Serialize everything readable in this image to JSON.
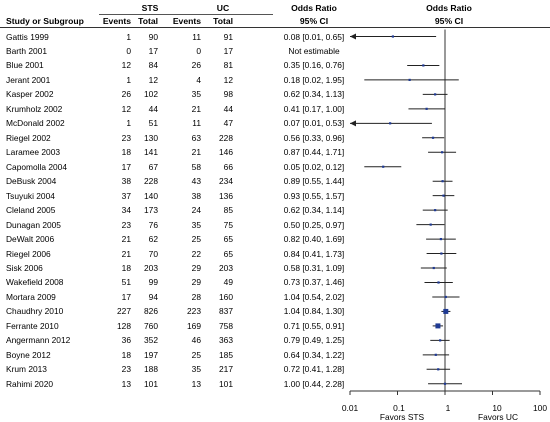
{
  "header": {
    "study_col": "Study or Subgroup",
    "group1": "STS",
    "group2": "UC",
    "events": "Events",
    "total": "Total",
    "or_title_left": "Odds Ratio",
    "or_sub_left": "95% CI",
    "or_title_right": "Odds Ratio",
    "or_sub_right": "95% CI"
  },
  "axis": {
    "ticks": [
      "0.01",
      "0.1",
      "1",
      "10",
      "100"
    ],
    "favors_left": "Favors  STS",
    "favors_right": "Favors  UC"
  },
  "studies": [
    {
      "name": "Gattis 1999",
      "e1": "1",
      "t1": "90",
      "e2": "11",
      "t2": "91",
      "ci_text": "0.08 [0.01, 0.65]"
    },
    {
      "name": "Barth 2001",
      "e1": "0",
      "t1": "17",
      "e2": "0",
      "t2": "17",
      "ci_text": "Not estimable"
    },
    {
      "name": "Blue 2001",
      "e1": "12",
      "t1": "84",
      "e2": "26",
      "t2": "81",
      "ci_text": "0.35 [0.16, 0.76]"
    },
    {
      "name": "Jerant 2001",
      "e1": "1",
      "t1": "12",
      "e2": "4",
      "t2": "12",
      "ci_text": "0.18 [0.02, 1.95]"
    },
    {
      "name": "Kasper 2002",
      "e1": "26",
      "t1": "102",
      "e2": "35",
      "t2": "98",
      "ci_text": "0.62 [0.34, 1.13]"
    },
    {
      "name": "Krumholz 2002",
      "e1": "12",
      "t1": "44",
      "e2": "21",
      "t2": "44",
      "ci_text": "0.41 [0.17, 1.00]"
    },
    {
      "name": "McDonald 2002",
      "e1": "1",
      "t1": "51",
      "e2": "11",
      "t2": "47",
      "ci_text": "0.07 [0.01, 0.53]"
    },
    {
      "name": "Riegel 2002",
      "e1": "23",
      "t1": "130",
      "e2": "63",
      "t2": "228",
      "ci_text": "0.56 [0.33, 0.96]"
    },
    {
      "name": "Laramee 2003",
      "e1": "18",
      "t1": "141",
      "e2": "21",
      "t2": "146",
      "ci_text": "0.87 [0.44, 1.71]"
    },
    {
      "name": "Capomolla 2004",
      "e1": "17",
      "t1": "67",
      "e2": "58",
      "t2": "66",
      "ci_text": "0.05 [0.02, 0.12]"
    },
    {
      "name": "DeBusk 2004",
      "e1": "38",
      "t1": "228",
      "e2": "43",
      "t2": "234",
      "ci_text": "0.89 [0.55, 1.44]"
    },
    {
      "name": "Tsuyuki 2004",
      "e1": "37",
      "t1": "140",
      "e2": "38",
      "t2": "136",
      "ci_text": "0.93 [0.55, 1.57]"
    },
    {
      "name": "Cleland 2005",
      "e1": "34",
      "t1": "173",
      "e2": "24",
      "t2": "85",
      "ci_text": "0.62 [0.34, 1.14]"
    },
    {
      "name": "Dunagan 2005",
      "e1": "23",
      "t1": "76",
      "e2": "35",
      "t2": "75",
      "ci_text": "0.50 [0.25, 0.97]"
    },
    {
      "name": "DeWalt 2006",
      "e1": "21",
      "t1": "62",
      "e2": "25",
      "t2": "65",
      "ci_text": "0.82 [0.40, 1.69]"
    },
    {
      "name": "Riegel 2006",
      "e1": "21",
      "t1": "70",
      "e2": "22",
      "t2": "65",
      "ci_text": "0.84 [0.41, 1.73]"
    },
    {
      "name": "Sisk 2006",
      "e1": "18",
      "t1": "203",
      "e2": "29",
      "t2": "203",
      "ci_text": "0.58 [0.31, 1.09]"
    },
    {
      "name": "Wakefield 2008",
      "e1": "51",
      "t1": "99",
      "e2": "29",
      "t2": "49",
      "ci_text": "0.73 [0.37, 1.46]"
    },
    {
      "name": "Mortara 2009",
      "e1": "17",
      "t1": "94",
      "e2": "28",
      "t2": "160",
      "ci_text": "1.04 [0.54, 2.02]"
    },
    {
      "name": "Chaudhry 2010",
      "e1": "227",
      "t1": "826",
      "e2": "223",
      "t2": "837",
      "ci_text": "1.04 [0.84, 1.30]"
    },
    {
      "name": "Ferrante 2010",
      "e1": "128",
      "t1": "760",
      "e2": "169",
      "t2": "758",
      "ci_text": "0.71 [0.55, 0.91]"
    },
    {
      "name": "Angermann 2012",
      "e1": "36",
      "t1": "352",
      "e2": "46",
      "t2": "363",
      "ci_text": "0.79 [0.49, 1.25]"
    },
    {
      "name": "Boyne 2012",
      "e1": "18",
      "t1": "197",
      "e2": "25",
      "t2": "185",
      "ci_text": "0.64 [0.34, 1.22]"
    },
    {
      "name": "Krum 2013",
      "e1": "23",
      "t1": "188",
      "e2": "35",
      "t2": "217",
      "ci_text": "0.72 [0.41, 1.28]"
    },
    {
      "name": "Rahimi 2020",
      "e1": "13",
      "t1": "101",
      "e2": "13",
      "t2": "101",
      "ci_text": "1.00 [0.44, 2.28]"
    }
  ],
  "chart_data": {
    "type": "forest",
    "scale": "log",
    "xlim": [
      0.01,
      100
    ],
    "xticks": [
      0.01,
      0.1,
      1,
      10,
      100
    ],
    "xlabel_left": "Favors  STS",
    "xlabel_right": "Favors  UC",
    "marker_color": "#1f3a93",
    "points": [
      {
        "study": "Gattis 1999",
        "or": 0.08,
        "lo": 0.01,
        "hi": 0.65,
        "size": 1
      },
      {
        "study": "Barth 2001",
        "or": null,
        "lo": null,
        "hi": null,
        "size": 0
      },
      {
        "study": "Blue 2001",
        "or": 0.35,
        "lo": 0.16,
        "hi": 0.76,
        "size": 1
      },
      {
        "study": "Jerant 2001",
        "or": 0.18,
        "lo": 0.02,
        "hi": 1.95,
        "size": 1
      },
      {
        "study": "Kasper 2002",
        "or": 0.62,
        "lo": 0.34,
        "hi": 1.13,
        "size": 1
      },
      {
        "study": "Krumholz 2002",
        "or": 0.41,
        "lo": 0.17,
        "hi": 1.0,
        "size": 1
      },
      {
        "study": "McDonald 2002",
        "or": 0.07,
        "lo": 0.01,
        "hi": 0.53,
        "size": 1
      },
      {
        "study": "Riegel 2002",
        "or": 0.56,
        "lo": 0.33,
        "hi": 0.96,
        "size": 1
      },
      {
        "study": "Laramee 2003",
        "or": 0.87,
        "lo": 0.44,
        "hi": 1.71,
        "size": 1
      },
      {
        "study": "Capomolla 2004",
        "or": 0.05,
        "lo": 0.02,
        "hi": 0.12,
        "size": 1
      },
      {
        "study": "DeBusk 2004",
        "or": 0.89,
        "lo": 0.55,
        "hi": 1.44,
        "size": 1
      },
      {
        "study": "Tsuyuki 2004",
        "or": 0.93,
        "lo": 0.55,
        "hi": 1.57,
        "size": 1
      },
      {
        "study": "Cleland 2005",
        "or": 0.62,
        "lo": 0.34,
        "hi": 1.14,
        "size": 1
      },
      {
        "study": "Dunagan 2005",
        "or": 0.5,
        "lo": 0.25,
        "hi": 0.97,
        "size": 1
      },
      {
        "study": "DeWalt 2006",
        "or": 0.82,
        "lo": 0.4,
        "hi": 1.69,
        "size": 1
      },
      {
        "study": "Riegel 2006",
        "or": 0.84,
        "lo": 0.41,
        "hi": 1.73,
        "size": 1
      },
      {
        "study": "Sisk 2006",
        "or": 0.58,
        "lo": 0.31,
        "hi": 1.09,
        "size": 1
      },
      {
        "study": "Wakefield 2008",
        "or": 0.73,
        "lo": 0.37,
        "hi": 1.46,
        "size": 1
      },
      {
        "study": "Mortara 2009",
        "or": 1.04,
        "lo": 0.54,
        "hi": 2.02,
        "size": 1
      },
      {
        "study": "Chaudhry 2010",
        "or": 1.04,
        "lo": 0.84,
        "hi": 1.3,
        "size": 3
      },
      {
        "study": "Ferrante 2010",
        "or": 0.71,
        "lo": 0.55,
        "hi": 0.91,
        "size": 3
      },
      {
        "study": "Angermann 2012",
        "or": 0.79,
        "lo": 0.49,
        "hi": 1.25,
        "size": 1
      },
      {
        "study": "Boyne 2012",
        "or": 0.64,
        "lo": 0.34,
        "hi": 1.22,
        "size": 1
      },
      {
        "study": "Krum 2013",
        "or": 0.72,
        "lo": 0.41,
        "hi": 1.28,
        "size": 1
      },
      {
        "study": "Rahimi 2020",
        "or": 1.0,
        "lo": 0.44,
        "hi": 2.28,
        "size": 1
      }
    ]
  }
}
